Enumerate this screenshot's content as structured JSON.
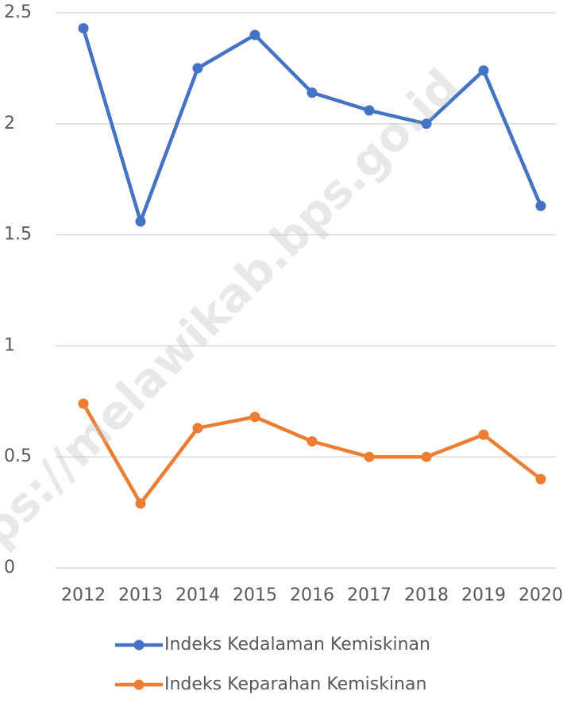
{
  "chart_data": {
    "type": "line",
    "categories": [
      "2012",
      "2013",
      "2014",
      "2015",
      "2016",
      "2017",
      "2018",
      "2019",
      "2020"
    ],
    "series": [
      {
        "name": "Indeks Kedalaman Kemiskinan",
        "color": "#4472c4",
        "values": [
          2.43,
          1.56,
          2.25,
          2.4,
          2.14,
          2.06,
          2.0,
          2.24,
          1.63
        ]
      },
      {
        "name": "Indeks Keparahan Kemiskinan",
        "color": "#ed7d31",
        "values": [
          0.74,
          0.29,
          0.63,
          0.68,
          0.57,
          0.5,
          0.5,
          0.6,
          0.4
        ]
      }
    ],
    "ylim": [
      0,
      2.5
    ],
    "yticks": [
      0,
      0.5,
      1,
      1.5,
      2,
      2.5
    ],
    "grid": true,
    "legend": "bottom",
    "annotations": [
      "ps://melawikab.bps.go.id"
    ]
  }
}
